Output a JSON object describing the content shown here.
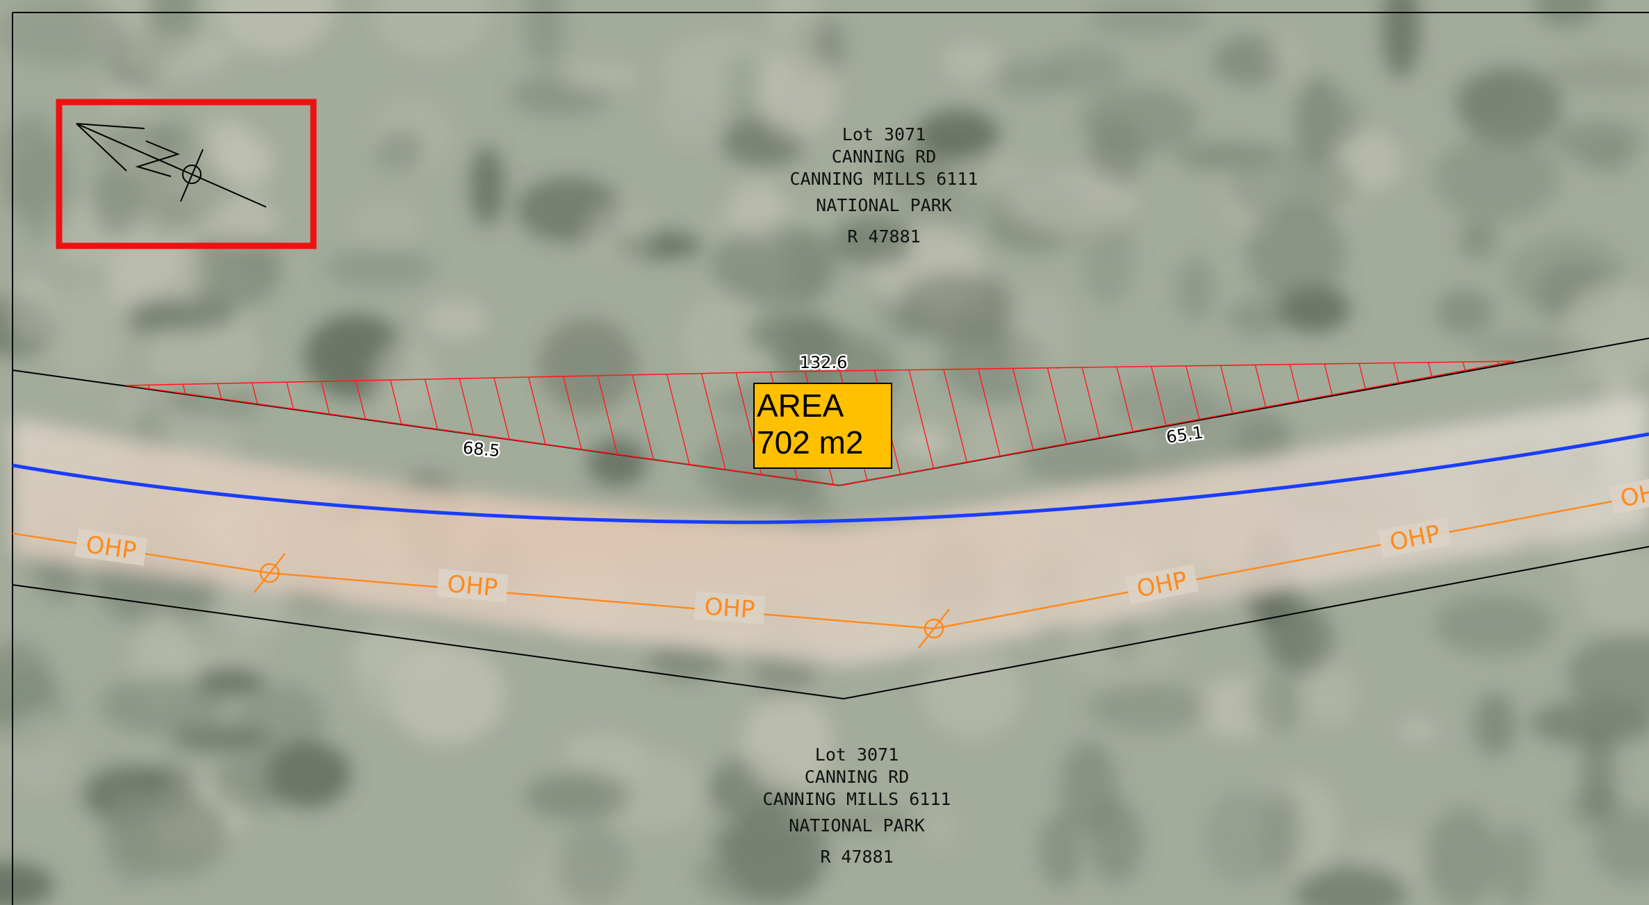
{
  "map": {
    "colors": {
      "background_vegetation": "#8e9a86",
      "track": "#d8cfc2",
      "property_boundary": "#000000",
      "hatch": "#ff1a1a",
      "centreline": "#1a3dff",
      "ohp_line": "#ff8a1c",
      "area_label_fill": "#ffc000",
      "north_frame": "#ee1111"
    },
    "lot_north": {
      "line1": "Lot 3071",
      "line2": "CANNING RD",
      "line3": "CANNING MILLS 6111",
      "line4": "NATIONAL PARK",
      "line5": "R 47881"
    },
    "lot_south": {
      "line1": "Lot 3071",
      "line2": "CANNING RD",
      "line3": "CANNING MILLS 6111",
      "line4": "NATIONAL PARK",
      "line5": "R 47881"
    },
    "dimensions": {
      "top": "132.6",
      "left": "68.5",
      "right": "65.1"
    },
    "area_label": {
      "line1": "AREA",
      "line2": "702 m2"
    },
    "ohp_label": "OHP",
    "north_arrow_icon": "north-arrow-icon",
    "pole_icon": "power-pole-icon"
  }
}
